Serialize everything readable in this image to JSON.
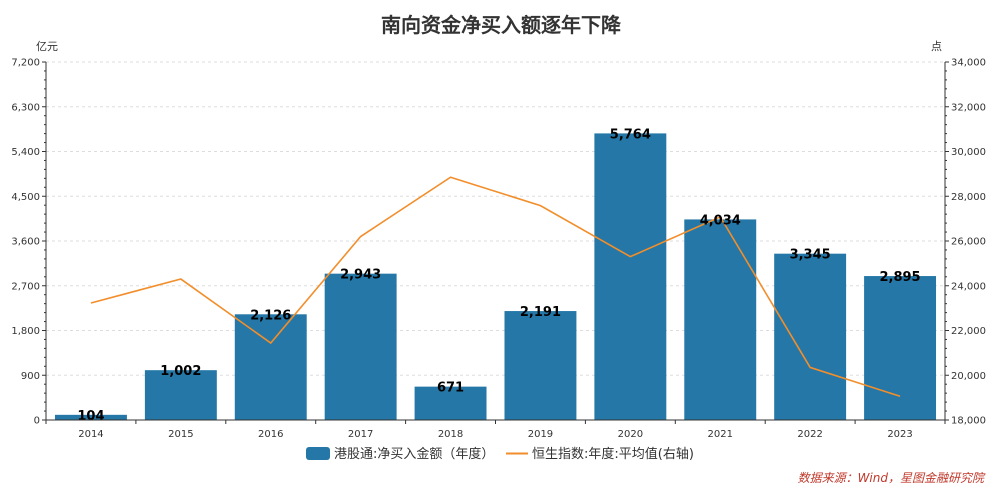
{
  "chart_data": {
    "type": "bar",
    "title": "南向资金净买入额逐年下降",
    "left_unit": "亿元",
    "right_unit": "点",
    "categories": [
      "2014",
      "2015",
      "2016",
      "2017",
      "2018",
      "2019",
      "2020",
      "2021",
      "2022",
      "2023"
    ],
    "series": [
      {
        "name": "港股通:净买入金额（年度）",
        "type": "bar",
        "axis": "left",
        "color": "#2477a6",
        "values": [
          104,
          1002,
          2126,
          2943,
          671,
          2191,
          5764,
          4034,
          3345,
          2895
        ],
        "labels": [
          "104",
          "1,002",
          "2,126",
          "2,943",
          "671",
          "2,191",
          "5,764",
          "4,034",
          "3,345",
          "2,895"
        ]
      },
      {
        "name": "恒生指数:年度:平均值(右轴)",
        "type": "line",
        "axis": "right",
        "color": "#f28e2b",
        "values": [
          23230,
          24300,
          21440,
          26200,
          28850,
          27580,
          25300,
          27080,
          20350,
          19060
        ]
      }
    ],
    "left_axis": {
      "ylim": [
        0,
        7200
      ],
      "ticks": [
        0,
        900,
        1800,
        2700,
        3600,
        4500,
        5400,
        6300,
        7200
      ],
      "tick_labels": [
        "0",
        "900",
        "1,800",
        "2,700",
        "3,600",
        "4,500",
        "5,400",
        "6,300",
        "7,200"
      ]
    },
    "right_axis": {
      "ylim": [
        18000,
        34000
      ],
      "ticks": [
        18000,
        20000,
        22000,
        24000,
        26000,
        28000,
        30000,
        32000,
        34000
      ],
      "tick_labels": [
        "18,000",
        "20,000",
        "22,000",
        "24,000",
        "26,000",
        "28,000",
        "30,000",
        "32,000",
        "34,000"
      ]
    },
    "grid": true,
    "legend_position": "bottom",
    "source": "数据来源：Wind，星图金融研究院"
  }
}
